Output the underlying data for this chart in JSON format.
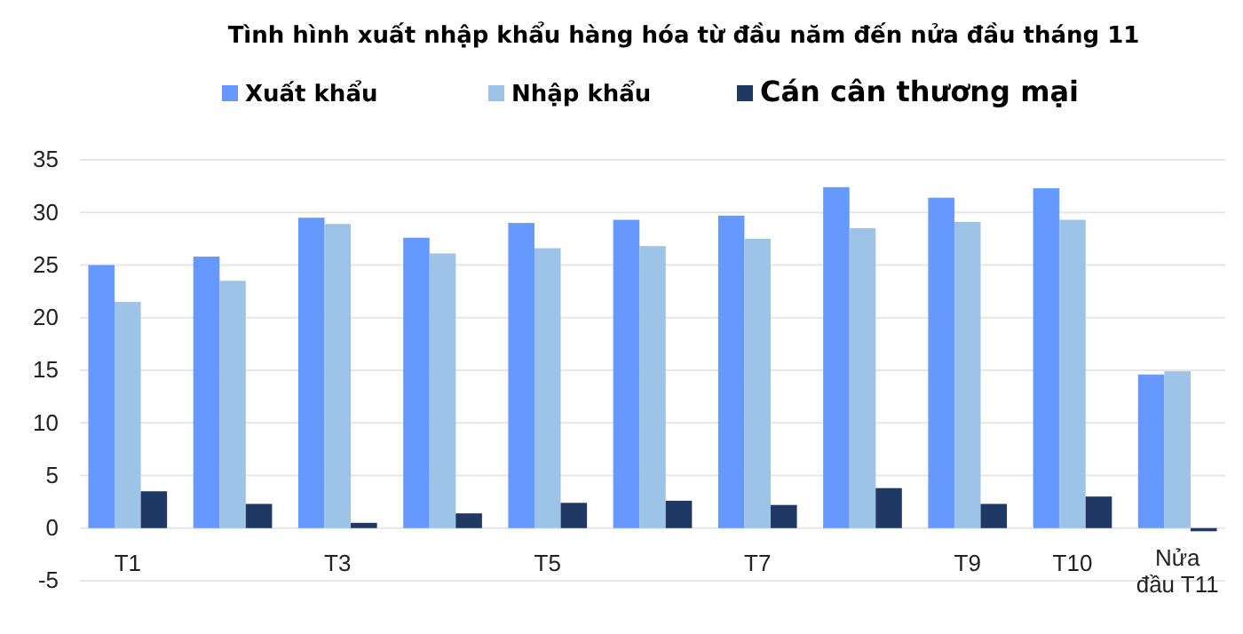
{
  "chart_data": {
    "type": "bar",
    "title": "Tình hình xuất nhập khẩu hàng hóa từ đầu năm đến nửa đầu tháng 11",
    "categories": [
      "T1",
      null,
      "T3",
      null,
      "T5",
      null,
      "T7",
      null,
      "T9",
      "T10",
      "Nửa đầu T11"
    ],
    "series": [
      {
        "name": "Xuất khẩu",
        "color": "#6699ff",
        "values": [
          25.0,
          25.8,
          29.5,
          27.6,
          29.0,
          29.3,
          29.7,
          32.4,
          31.4,
          32.3,
          14.6
        ]
      },
      {
        "name": "Nhập khẩu",
        "color": "#9dc3e6",
        "values": [
          21.5,
          23.5,
          28.9,
          26.1,
          26.6,
          26.8,
          27.5,
          28.5,
          29.1,
          29.3,
          14.9
        ]
      },
      {
        "name": "Cán cân thương mại",
        "color": "#1f3864",
        "values": [
          3.5,
          2.3,
          0.5,
          1.4,
          2.4,
          2.6,
          2.2,
          3.8,
          2.3,
          3.0,
          -0.3
        ]
      }
    ],
    "ylim": [
      -5,
      35
    ],
    "yticks": [
      -5,
      0,
      5,
      10,
      15,
      20,
      25,
      30,
      35
    ],
    "grid": "y",
    "legend": "top"
  }
}
